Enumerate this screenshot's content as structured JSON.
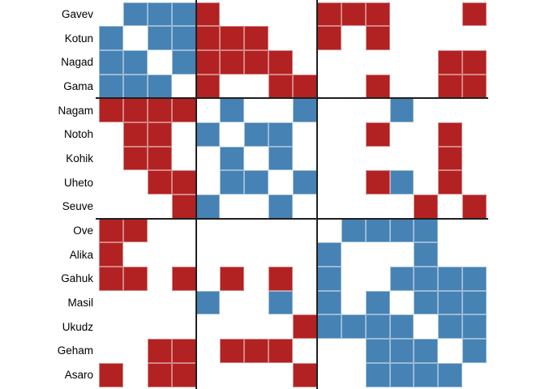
{
  "chart_data": {
    "type": "heatmap",
    "subtype": "adjacency-matrix",
    "row_labels": [
      "Gavev",
      "Kotun",
      "Nagad",
      "Gama",
      "Nagam",
      "Notoh",
      "Kohik",
      "Uheto",
      "Seuve",
      "Ove",
      "Alika",
      "Gahuk",
      "Masil",
      "Ukudz",
      "Geham",
      "Asaro"
    ],
    "n_cols": 16,
    "cell_encoding": {
      ".": "empty",
      "B": "blue",
      "R": "red"
    },
    "cells": [
      ".BBBR....RRR...R",
      "B.BBRRR..R.R....",
      "BB.BRRRR......RR",
      "BBB.R..RR..R..RR",
      "RRRR.B..B...B...",
      ".RR.B.BB...R..R.",
      ".RR..B.B......R.",
      "..RR.BB.B..RB.R.",
      "...RB..B.....R.R",
      "RR........BBBB..",
      "R........B...B..",
      "RR.R.R.R.B..BBBB",
      "....B..B.B.B.BBB",
      "........RBBBB.BB",
      "..RR.RRR...BBB.B",
      "R.RR....R..BBBB."
    ],
    "block_boundaries_after_rows": [
      4,
      9
    ],
    "block_boundaries_after_cols": [
      4,
      9
    ],
    "colors": {
      "blue": "#4682b4",
      "red": "#b22222",
      "empty": "#ffffff",
      "separator": "#1f1f1f"
    },
    "legend_position": "none",
    "grid": "light borders on colored cells only"
  }
}
